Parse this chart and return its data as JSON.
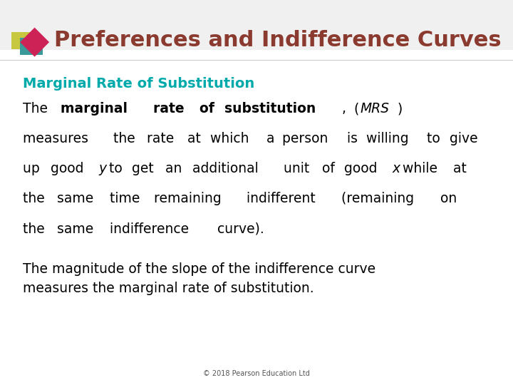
{
  "title": "Preferences and Indifference Curves",
  "title_color": "#8B3A2F",
  "title_fontsize": 22,
  "subtitle": "Marginal Rate of Substitution",
  "subtitle_color": "#00AAAA",
  "subtitle_fontsize": 14,
  "body_fontsize": 13.5,
  "body_color": "#000000",
  "background_color": "#FFFFFF",
  "footer_text": "© 2018 Pearson Education Ltd",
  "footer_fontsize": 7,
  "footer_color": "#555555",
  "paragraph1_parts": [
    {
      "text": "The ",
      "bold": false,
      "italic": false
    },
    {
      "text": "marginal rate of substitution",
      "bold": true,
      "italic": false
    },
    {
      "text": ", (",
      "bold": false,
      "italic": false
    },
    {
      "text": "MRS",
      "bold": false,
      "italic": true
    },
    {
      "text": ") measures the rate at which a person is willing to give up good ",
      "bold": false,
      "italic": false
    },
    {
      "text": "y",
      "bold": false,
      "italic": true
    },
    {
      "text": " to get an additional unit of good ",
      "bold": false,
      "italic": false
    },
    {
      "text": "x",
      "bold": false,
      "italic": true
    },
    {
      "text": " while at the same time remaining indifferent (remaining on the same indifference curve).",
      "bold": false,
      "italic": false
    }
  ],
  "paragraph2": "The magnitude of the slope of the indifference curve\nmeasures the marginal rate of substitution.",
  "header_bar_height": 0.13
}
